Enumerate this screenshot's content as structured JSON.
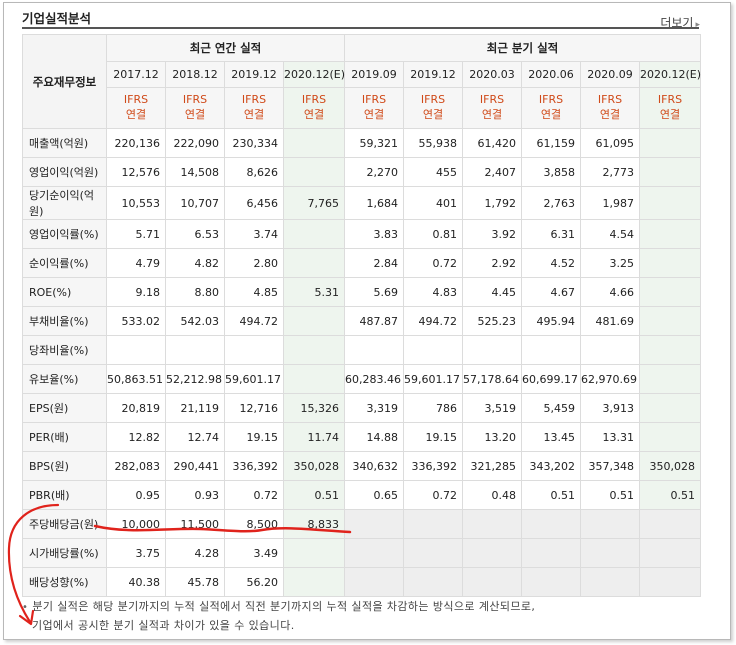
{
  "header": {
    "title": "기업실적분석",
    "more_label": "더보기"
  },
  "groups": {
    "annual": "최근 연간 실적",
    "quarter": "최근 분기 실적"
  },
  "label_header": "주요재무정보",
  "periods": [
    "2017.12",
    "2018.12",
    "2019.12",
    "2020.12(E)",
    "2019.09",
    "2019.12",
    "2020.03",
    "2020.06",
    "2020.09",
    "2020.12(E)"
  ],
  "standard": {
    "line1": "IFRS",
    "line2": "연결"
  },
  "rows": [
    {
      "label": "매출액(억원)",
      "values": [
        "220,136",
        "222,090",
        "230,334",
        "",
        "59,321",
        "55,938",
        "61,420",
        "61,159",
        "61,095",
        ""
      ]
    },
    {
      "label": "영업이익(억원)",
      "values": [
        "12,576",
        "14,508",
        "8,626",
        "",
        "2,270",
        "455",
        "2,407",
        "3,858",
        "2,773",
        ""
      ]
    },
    {
      "label": "당기순이익(억원)",
      "values": [
        "10,553",
        "10,707",
        "6,456",
        "7,765",
        "1,684",
        "401",
        "1,792",
        "2,763",
        "1,987",
        ""
      ]
    },
    {
      "label": "영업이익률(%)",
      "values": [
        "5.71",
        "6.53",
        "3.74",
        "",
        "3.83",
        "0.81",
        "3.92",
        "6.31",
        "4.54",
        ""
      ]
    },
    {
      "label": "순이익률(%)",
      "values": [
        "4.79",
        "4.82",
        "2.80",
        "",
        "2.84",
        "0.72",
        "2.92",
        "4.52",
        "3.25",
        ""
      ]
    },
    {
      "label": "ROE(%)",
      "values": [
        "9.18",
        "8.80",
        "4.85",
        "5.31",
        "5.69",
        "4.83",
        "4.45",
        "4.67",
        "4.66",
        ""
      ]
    },
    {
      "label": "부채비율(%)",
      "values": [
        "533.02",
        "542.03",
        "494.72",
        "",
        "487.87",
        "494.72",
        "525.23",
        "495.94",
        "481.69",
        ""
      ]
    },
    {
      "label": "당좌비율(%)",
      "values": [
        "",
        "",
        "",
        "",
        "",
        "",
        "",
        "",
        "",
        ""
      ]
    },
    {
      "label": "유보율(%)",
      "values": [
        "50,863.51",
        "52,212.98",
        "59,601.17",
        "",
        "60,283.46",
        "59,601.17",
        "57,178.64",
        "60,699.17",
        "62,970.69",
        ""
      ]
    },
    {
      "label": "EPS(원)",
      "values": [
        "20,819",
        "21,119",
        "12,716",
        "15,326",
        "3,319",
        "786",
        "3,519",
        "5,459",
        "3,913",
        ""
      ]
    },
    {
      "label": "PER(배)",
      "values": [
        "12.82",
        "12.74",
        "19.15",
        "11.74",
        "14.88",
        "19.15",
        "13.20",
        "13.45",
        "13.31",
        ""
      ]
    },
    {
      "label": "BPS(원)",
      "values": [
        "282,083",
        "290,441",
        "336,392",
        "350,028",
        "340,632",
        "336,392",
        "321,285",
        "343,202",
        "357,348",
        "350,028"
      ]
    },
    {
      "label": "PBR(배)",
      "values": [
        "0.95",
        "0.93",
        "0.72",
        "0.51",
        "0.65",
        "0.72",
        "0.48",
        "0.51",
        "0.51",
        "0.51"
      ]
    },
    {
      "label": "주당배당금(원)",
      "values": [
        "10,000",
        "11,500",
        "8,500",
        "8,833",
        "",
        "",
        "",
        "",
        "",
        ""
      ]
    },
    {
      "label": "시가배당률(%)",
      "values": [
        "3.75",
        "4.28",
        "3.49",
        "",
        "",
        "",
        "",
        "",
        "",
        ""
      ]
    },
    {
      "label": "배당성향(%)",
      "values": [
        "40.38",
        "45.78",
        "56.20",
        "",
        "",
        "",
        "",
        "",
        "",
        ""
      ]
    }
  ],
  "note": {
    "line1": "분기 실적은 해당 분기까지의 누적 실적에서 직전 분기까지의 누적 실적을 차감하는 방식으로 계산되므로,",
    "line2": "기업에서 공시한 분기 실적과 차이가 있을 수 있습니다."
  },
  "colors": {
    "ifrs": "#d04a19",
    "estimate_bg": "#eef5ee",
    "annotation": "#e0231c"
  }
}
